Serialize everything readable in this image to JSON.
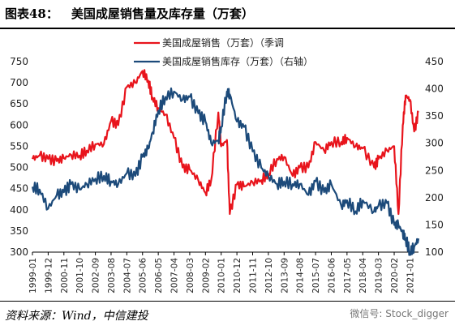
{
  "header": {
    "figure_label": "图表48：",
    "title": "美国成屋销售量及库存量（万套）"
  },
  "footer": {
    "source": "资料来源：Wind，中信建投",
    "watermark": "微信号: Stock_digger"
  },
  "chart_data": {
    "type": "line",
    "x_categories": [
      "1999-01",
      "1999-12",
      "2000-11",
      "2001-10",
      "2002-09",
      "2003-08",
      "2004-07",
      "2005-06",
      "2006-05",
      "2007-04",
      "2008-03",
      "2009-02",
      "2010-01",
      "2010-12",
      "2011-11",
      "2012-10",
      "2013-09",
      "2014-08",
      "2015-07",
      "2016-06",
      "2017-05",
      "2018-04",
      "2019-03",
      "2020-02",
      "2021-01"
    ],
    "left_axis": {
      "ylim": [
        300,
        750
      ],
      "ticks": [
        300,
        350,
        400,
        450,
        500,
        550,
        600,
        650,
        700,
        750
      ]
    },
    "right_axis": {
      "ylim": [
        100,
        450
      ],
      "ticks": [
        100,
        150,
        200,
        250,
        300,
        350,
        400,
        450
      ]
    },
    "legend_position": "top-center",
    "series": [
      {
        "name": "美国成屋销售（万套）（季调",
        "axis": "left",
        "color": "#e8141c",
        "points": [
          [
            "1999-01",
            520
          ],
          [
            "1999-06",
            528
          ],
          [
            "1999-12",
            520
          ],
          [
            "2000-06",
            515
          ],
          [
            "2000-11",
            522
          ],
          [
            "2001-04",
            530
          ],
          [
            "2001-10",
            528
          ],
          [
            "2002-03",
            540
          ],
          [
            "2002-09",
            555
          ],
          [
            "2003-03",
            555
          ],
          [
            "2003-08",
            610
          ],
          [
            "2004-01",
            600
          ],
          [
            "2004-07",
            690
          ],
          [
            "2005-01",
            700
          ],
          [
            "2005-06",
            728
          ],
          [
            "2005-10",
            705
          ],
          [
            "2006-01",
            665
          ],
          [
            "2006-05",
            640
          ],
          [
            "2006-10",
            625
          ],
          [
            "2007-04",
            570
          ],
          [
            "2007-10",
            500
          ],
          [
            "2008-03",
            495
          ],
          [
            "2008-09",
            470
          ],
          [
            "2009-02",
            440
          ],
          [
            "2009-06",
            470
          ],
          [
            "2009-11",
            630
          ],
          [
            "2010-01",
            550
          ],
          [
            "2010-05",
            565
          ],
          [
            "2010-07",
            390
          ],
          [
            "2010-12",
            460
          ],
          [
            "2011-05",
            455
          ],
          [
            "2011-11",
            465
          ],
          [
            "2012-05",
            470
          ],
          [
            "2012-10",
            485
          ],
          [
            "2013-04",
            520
          ],
          [
            "2013-09",
            525
          ],
          [
            "2014-03",
            480
          ],
          [
            "2014-08",
            500
          ],
          [
            "2015-02",
            500
          ],
          [
            "2015-07",
            560
          ],
          [
            "2016-01",
            540
          ],
          [
            "2016-06",
            560
          ],
          [
            "2017-01",
            560
          ],
          [
            "2017-05",
            570
          ],
          [
            "2017-11",
            550
          ],
          [
            "2018-04",
            545
          ],
          [
            "2018-12",
            500
          ],
          [
            "2019-03",
            520
          ],
          [
            "2019-09",
            540
          ],
          [
            "2020-02",
            550
          ],
          [
            "2020-05",
            390
          ],
          [
            "2020-08",
            600
          ],
          [
            "2020-10",
            670
          ],
          [
            "2021-01",
            660
          ],
          [
            "2021-04",
            585
          ],
          [
            "2021-07",
            630
          ]
        ]
      },
      {
        "name": "美国成屋销售库存（万套）（右轴）",
        "axis": "right",
        "color": "#1c4a7a",
        "points": [
          [
            "1999-01",
            220
          ],
          [
            "1999-06",
            215
          ],
          [
            "1999-12",
            180
          ],
          [
            "2000-06",
            205
          ],
          [
            "2000-11",
            210
          ],
          [
            "2001-04",
            225
          ],
          [
            "2001-10",
            215
          ],
          [
            "2002-03",
            225
          ],
          [
            "2002-09",
            235
          ],
          [
            "2003-03",
            240
          ],
          [
            "2003-08",
            230
          ],
          [
            "2004-01",
            225
          ],
          [
            "2004-07",
            245
          ],
          [
            "2005-01",
            240
          ],
          [
            "2005-06",
            275
          ],
          [
            "2005-10",
            290
          ],
          [
            "2006-01",
            320
          ],
          [
            "2006-05",
            360
          ],
          [
            "2006-10",
            385
          ],
          [
            "2007-04",
            395
          ],
          [
            "2007-10",
            380
          ],
          [
            "2008-03",
            385
          ],
          [
            "2008-09",
            355
          ],
          [
            "2009-02",
            340
          ],
          [
            "2009-06",
            300
          ],
          [
            "2009-11",
            305
          ],
          [
            "2010-01",
            330
          ],
          [
            "2010-05",
            395
          ],
          [
            "2010-07",
            390
          ],
          [
            "2010-12",
            340
          ],
          [
            "2011-05",
            330
          ],
          [
            "2011-11",
            285
          ],
          [
            "2012-05",
            255
          ],
          [
            "2012-10",
            240
          ],
          [
            "2013-04",
            225
          ],
          [
            "2013-09",
            230
          ],
          [
            "2014-03",
            225
          ],
          [
            "2014-08",
            225
          ],
          [
            "2015-02",
            205
          ],
          [
            "2015-07",
            230
          ],
          [
            "2016-01",
            210
          ],
          [
            "2016-06",
            225
          ],
          [
            "2017-01",
            185
          ],
          [
            "2017-05",
            195
          ],
          [
            "2017-11",
            175
          ],
          [
            "2018-04",
            195
          ],
          [
            "2018-12",
            175
          ],
          [
            "2019-03",
            185
          ],
          [
            "2019-09",
            190
          ],
          [
            "2020-02",
            150
          ],
          [
            "2020-05",
            150
          ],
          [
            "2020-08",
            135
          ],
          [
            "2020-10",
            125
          ],
          [
            "2021-01",
            100
          ],
          [
            "2021-04",
            110
          ],
          [
            "2021-07",
            125
          ]
        ]
      }
    ]
  }
}
